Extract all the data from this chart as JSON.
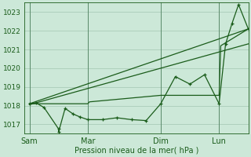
{
  "bg_color": "#cce8d8",
  "grid_color": "#aaccb8",
  "line_color": "#1a5c1a",
  "dark_line_color": "#1a5c1a",
  "xlabel": "Pression niveau de la mer( hPa )",
  "ylim": [
    1016.5,
    1023.5
  ],
  "yticks": [
    1017,
    1018,
    1019,
    1020,
    1021,
    1022,
    1023
  ],
  "xtick_labels": [
    "Sam",
    "Mar",
    "Dim",
    "Lun"
  ],
  "xtick_positions": [
    0,
    36,
    81,
    117
  ],
  "vline_positions": [
    0,
    36,
    81,
    117
  ],
  "xlim": [
    -3,
    135
  ],
  "series1_x": [
    0,
    4,
    9,
    18,
    18,
    22,
    27,
    31,
    36,
    45,
    54,
    63,
    72,
    81,
    90,
    99,
    108,
    117,
    121,
    125,
    129,
    135
  ],
  "series1_y": [
    1018.1,
    1018.15,
    1017.9,
    1016.75,
    1016.6,
    1017.85,
    1017.55,
    1017.4,
    1017.25,
    1017.25,
    1017.35,
    1017.25,
    1017.2,
    1018.1,
    1019.55,
    1019.15,
    1019.65,
    1018.1,
    1021.3,
    1022.4,
    1023.4,
    1022.1
  ],
  "series2_x": [
    0,
    36,
    37,
    81,
    82,
    117,
    118,
    135
  ],
  "series2_y": [
    1018.1,
    1018.1,
    1018.2,
    1018.55,
    1018.55,
    1018.55,
    1021.2,
    1022.1
  ],
  "series3_x": [
    0,
    135
  ],
  "series3_y": [
    1018.05,
    1021.3
  ],
  "series4_x": [
    0,
    135
  ],
  "series4_y": [
    1018.1,
    1022.1
  ]
}
